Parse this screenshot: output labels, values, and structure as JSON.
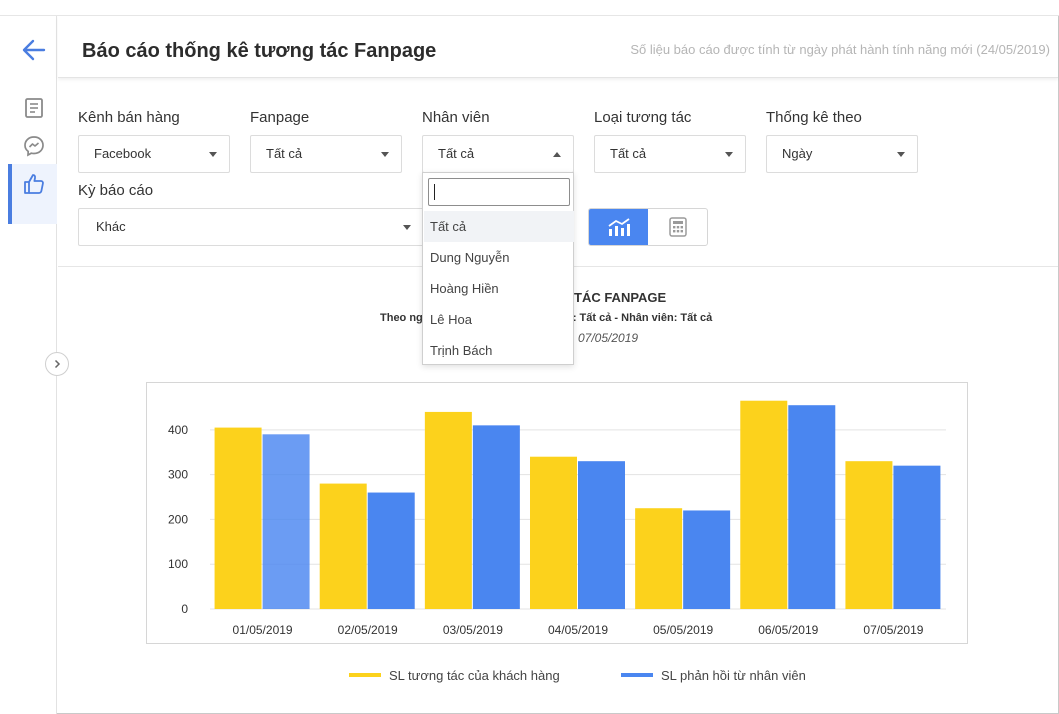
{
  "sidebar": {
    "icons": [
      "arrow-left-icon",
      "document-icon",
      "messenger-icon",
      "thumbs-up-icon"
    ],
    "accent": "#4a7de0"
  },
  "header": {
    "title": "Báo cáo thống kê tương tác Fanpage",
    "note": "Số liệu báo cáo được tính từ ngày phát hành tính năng mới (24/05/2019)"
  },
  "filters": {
    "channel": {
      "label": "Kênh bán hàng",
      "value": "Facebook"
    },
    "fanpage": {
      "label": "Fanpage",
      "value": "Tất cả"
    },
    "staff": {
      "label": "Nhân viên",
      "value": "Tất cả"
    },
    "interaction_type": {
      "label": "Loại tương tác",
      "value": "Tất cả"
    },
    "stat_by": {
      "label": "Thống kê theo",
      "value": "Ngày"
    },
    "period": {
      "label": "Kỳ báo cáo",
      "value": "Khác"
    }
  },
  "view_toggle": {
    "active": "chart",
    "icons": [
      "chart-icon",
      "calculator-icon"
    ],
    "active_color": "#4a86f0"
  },
  "staff_dropdown": {
    "search_value": "",
    "options": [
      "Tất cả",
      "Dung Nguyễn",
      "Hoàng Hiền",
      "Lê Hoa",
      "Trịnh Bách"
    ],
    "selected": "Tất cả"
  },
  "chart_texts": {
    "title_visible": "TÁC FANPAGE",
    "sub_left_visible": "Theo ng",
    "sub_right_visible": "ge: Tất cả - Nhân viên: Tất cả",
    "date_visible": "07/05/2019"
  },
  "chart_data": {
    "type": "bar",
    "categories": [
      "01/05/2019",
      "02/05/2019",
      "03/05/2019",
      "04/05/2019",
      "05/05/2019",
      "06/05/2019",
      "07/05/2019"
    ],
    "series": [
      {
        "name": "SL tương tác của khách hàng",
        "values": [
          405,
          280,
          440,
          340,
          225,
          465,
          330
        ],
        "color": "#fcd21c"
      },
      {
        "name": "SL phản hồi từ nhân viên",
        "values": [
          390,
          260,
          410,
          330,
          220,
          455,
          320
        ],
        "color": "#4a86f0"
      }
    ],
    "ylim": [
      0,
      480
    ],
    "yticks": [
      0,
      100,
      200,
      300,
      400
    ],
    "grid": true,
    "legend": "bottom"
  }
}
